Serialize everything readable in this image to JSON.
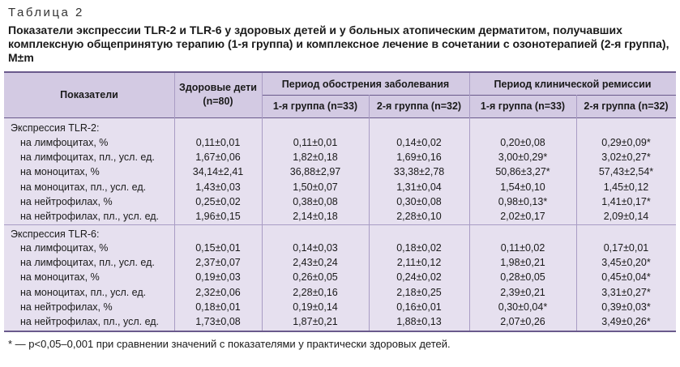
{
  "table_label": "Таблица 2",
  "caption": "Показатели экспрессии TLR-2 и TLR-6 у здоровых детей и у больных атопическим дерматитом, получавших комплексную общепринятую терапию (1-я группа) и комплексное лечение в сочетании с озонотерапией (2-я группа), M±m",
  "headers": {
    "indicators": "Показатели",
    "healthy": "Здоровые дети (n=80)",
    "exacerbation": "Период обострения заболевания",
    "remission": "Период клинической ремиссии",
    "group1": "1-я группа (n=33)",
    "group2": "2-я группа (n=32)"
  },
  "sections": [
    {
      "title": "Экспрессия TLR-2:",
      "rows": [
        {
          "label": "на лимфоцитах, %",
          "values": [
            "0,11±0,01",
            "0,11±0,01",
            "0,14±0,02",
            "0,20±0,08",
            "0,29±0,09*"
          ]
        },
        {
          "label": "на лимфоцитах, пл., усл. ед.",
          "values": [
            "1,67±0,06",
            "1,82±0,18",
            "1,69±0,16",
            "3,00±0,29*",
            "3,02±0,27*"
          ]
        },
        {
          "label": "на моноцитах, %",
          "values": [
            "34,14±2,41",
            "36,88±2,97",
            "33,38±2,78",
            "50,86±3,27*",
            "57,43±2,54*"
          ]
        },
        {
          "label": "на моноцитах, пл., усл. ед.",
          "values": [
            "1,43±0,03",
            "1,50±0,07",
            "1,31±0,04",
            "1,54±0,10",
            "1,45±0,12"
          ]
        },
        {
          "label": "на нейтрофилах, %",
          "values": [
            "0,25±0,02",
            "0,38±0,08",
            "0,30±0,08",
            "0,98±0,13*",
            "1,41±0,17*"
          ]
        },
        {
          "label": "на нейтрофилах, пл., усл. ед.",
          "values": [
            "1,96±0,15",
            "2,14±0,18",
            "2,28±0,10",
            "2,02±0,17",
            "2,09±0,14"
          ]
        }
      ]
    },
    {
      "title": "Экспрессия TLR-6:",
      "rows": [
        {
          "label": "на лимфоцитах, %",
          "values": [
            "0,15±0,01",
            "0,14±0,03",
            "0,18±0,02",
            "0,11±0,02",
            "0,17±0,01"
          ]
        },
        {
          "label": "на лимфоцитах, пл., усл. ед.",
          "values": [
            "2,37±0,07",
            "2,43±0,24",
            "2,11±0,12",
            "1,98±0,21",
            "3,45±0,20*"
          ]
        },
        {
          "label": "на моноцитах, %",
          "values": [
            "0,19±0,03",
            "0,26±0,05",
            "0,24±0,02",
            "0,28±0,05",
            "0,45±0,04*"
          ]
        },
        {
          "label": "на моноцитах, пл., усл. ед.",
          "values": [
            "2,32±0,06",
            "2,28±0,16",
            "2,18±0,25",
            "2,39±0,21",
            "3,31±0,27*"
          ]
        },
        {
          "label": "на нейтрофилах, %",
          "values": [
            "0,18±0,01",
            "0,19±0,14",
            "0,16±0,01",
            "0,30±0,04*",
            "0,39±0,03*"
          ]
        },
        {
          "label": "на нейтрофилах, пл., усл. ед.",
          "values": [
            "1,73±0,08",
            "1,87±0,21",
            "1,88±0,13",
            "2,07±0,26",
            "3,49±0,26*"
          ]
        }
      ]
    }
  ],
  "footnote": "* — p<0,05–0,001 при сравнении значений с показателями у практически здоровых детей."
}
